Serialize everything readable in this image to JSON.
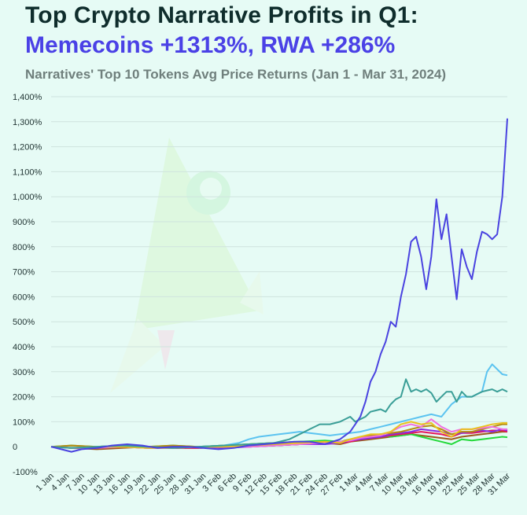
{
  "header": {
    "title": "Top Crypto Narrative Profits in Q1:",
    "subtitle": "Memecoins +1313%, RWA +286%",
    "caption": "Narratives' Top 10 Tokens Avg Price Returns (Jan 1 - Mar 31, 2024)"
  },
  "chart_data": {
    "type": "line",
    "title": "Top Crypto Narrative Profits in Q1: Memecoins +1313%, RWA +286%",
    "subtitle": "Narratives' Top 10 Tokens Avg Price Returns (Jan 1 - Mar 31, 2024)",
    "xlabel": "",
    "ylabel": "",
    "ylim": [
      -100,
      1400
    ],
    "grid": true,
    "legend": "none",
    "y_ticks": [
      "-100%",
      "0",
      "100%",
      "200%",
      "300%",
      "400%",
      "500%",
      "600%",
      "700%",
      "800%",
      "900%",
      "1,000%",
      "1,100%",
      "1,200%",
      "1,300%",
      "1,400%"
    ],
    "y_tick_values": [
      -100,
      0,
      100,
      200,
      300,
      400,
      500,
      600,
      700,
      800,
      900,
      1000,
      1100,
      1200,
      1300,
      1400
    ],
    "x_labels": [
      "1 Jan",
      "4 Jan",
      "7 Jan",
      "10 Jan",
      "13 Jan",
      "16 Jan",
      "19 Jan",
      "22 Jan",
      "25 Jan",
      "28 Jan",
      "31 Jan",
      "3 Feb",
      "6 Feb",
      "9 Feb",
      "12 Feb",
      "15 Feb",
      "18 Feb",
      "21 Feb",
      "24 Feb",
      "27 Feb",
      "1 Mar",
      "4 Mar",
      "7 Mar",
      "10 Mar",
      "13 Mar",
      "16 Mar",
      "19 Mar",
      "22 Mar",
      "25 Mar",
      "28 Mar",
      "31 Mar"
    ],
    "x_days": [
      1,
      4,
      7,
      10,
      13,
      16,
      19,
      22,
      25,
      28,
      31,
      34,
      37,
      40,
      43,
      46,
      49,
      52,
      55,
      58,
      61,
      64,
      67,
      70,
      73,
      76,
      79,
      82,
      85,
      88,
      91
    ],
    "series": [
      {
        "color": "#4a43e0",
        "x": [
          1,
          3,
          5,
          7,
          10,
          13,
          16,
          19,
          22,
          25,
          28,
          31,
          34,
          37,
          40,
          43,
          46,
          49,
          52,
          55,
          58,
          60,
          61,
          62,
          63,
          64,
          65,
          66,
          67,
          68,
          69,
          70,
          71,
          72,
          73,
          74,
          75,
          76,
          77,
          78,
          79,
          80,
          81,
          82,
          83,
          84,
          85,
          86,
          87,
          88,
          89,
          90,
          91
        ],
        "y": [
          0,
          -10,
          -20,
          -10,
          -5,
          5,
          10,
          5,
          -5,
          0,
          0,
          -5,
          -10,
          -5,
          5,
          10,
          15,
          20,
          20,
          10,
          30,
          60,
          90,
          120,
          180,
          260,
          300,
          370,
          420,
          500,
          480,
          600,
          690,
          820,
          840,
          760,
          630,
          760,
          990,
          830,
          930,
          760,
          590,
          790,
          720,
          670,
          780,
          860,
          850,
          830,
          850,
          1000,
          1313
        ]
      },
      {
        "color": "#3a9e97",
        "x": [
          1,
          5,
          10,
          15,
          20,
          25,
          30,
          35,
          40,
          45,
          48,
          50,
          52,
          54,
          56,
          58,
          60,
          61,
          62,
          63,
          64,
          65,
          66,
          67,
          68,
          69,
          70,
          71,
          72,
          73,
          74,
          75,
          76,
          77,
          78,
          79,
          80,
          81,
          82,
          83,
          84,
          85,
          86,
          87,
          88,
          89,
          90,
          91
        ],
        "y": [
          0,
          -5,
          0,
          5,
          0,
          -5,
          0,
          5,
          10,
          15,
          30,
          50,
          70,
          90,
          90,
          100,
          120,
          100,
          110,
          120,
          140,
          145,
          150,
          140,
          170,
          190,
          200,
          270,
          220,
          230,
          220,
          230,
          215,
          180,
          200,
          220,
          220,
          180,
          220,
          200,
          200,
          210,
          220,
          225,
          230,
          220,
          230,
          220
        ]
      },
      {
        "color": "#5bc3f0",
        "x": [
          1,
          5,
          10,
          15,
          20,
          25,
          30,
          35,
          38,
          40,
          42,
          44,
          46,
          48,
          50,
          52,
          54,
          56,
          58,
          60,
          62,
          64,
          66,
          68,
          70,
          72,
          74,
          76,
          78,
          80,
          82,
          84,
          86,
          87,
          88,
          89,
          90,
          91
        ],
        "y": [
          0,
          -5,
          0,
          5,
          0,
          -5,
          0,
          5,
          15,
          30,
          40,
          45,
          50,
          55,
          60,
          55,
          50,
          45,
          50,
          55,
          60,
          70,
          80,
          90,
          100,
          110,
          120,
          130,
          120,
          170,
          200,
          200,
          220,
          300,
          330,
          310,
          290,
          286
        ]
      },
      {
        "color": "#e9c11f",
        "x": [
          1,
          5,
          10,
          15,
          20,
          25,
          30,
          35,
          40,
          45,
          50,
          55,
          58,
          60,
          62,
          64,
          66,
          68,
          70,
          72,
          74,
          76,
          78,
          80,
          82,
          84,
          86,
          88,
          90,
          91
        ],
        "y": [
          0,
          -5,
          0,
          0,
          -5,
          -5,
          0,
          0,
          5,
          10,
          15,
          20,
          15,
          30,
          40,
          50,
          50,
          60,
          90,
          100,
          90,
          95,
          60,
          40,
          70,
          70,
          80,
          90,
          95,
          95
        ]
      },
      {
        "color": "#f070e0",
        "x": [
          1,
          5,
          10,
          15,
          20,
          25,
          30,
          35,
          40,
          45,
          50,
          55,
          58,
          60,
          62,
          64,
          66,
          68,
          70,
          72,
          74,
          76,
          78,
          80,
          82,
          84,
          86,
          88,
          90,
          91
        ],
        "y": [
          0,
          -5,
          -5,
          0,
          -5,
          -5,
          0,
          0,
          0,
          5,
          10,
          15,
          20,
          25,
          35,
          40,
          45,
          60,
          80,
          90,
          80,
          110,
          80,
          60,
          70,
          70,
          75,
          80,
          70,
          70
        ]
      },
      {
        "color": "#b68a13",
        "x": [
          1,
          5,
          10,
          15,
          20,
          25,
          30,
          35,
          40,
          45,
          50,
          55,
          58,
          60,
          62,
          64,
          66,
          68,
          70,
          72,
          74,
          76,
          78,
          80,
          82,
          84,
          86,
          88,
          90,
          91
        ],
        "y": [
          0,
          5,
          0,
          5,
          0,
          5,
          0,
          5,
          10,
          15,
          20,
          15,
          20,
          30,
          40,
          45,
          50,
          55,
          60,
          70,
          80,
          85,
          70,
          50,
          60,
          60,
          70,
          80,
          90,
          90
        ]
      },
      {
        "color": "#8a2be2",
        "x": [
          1,
          5,
          10,
          15,
          20,
          25,
          30,
          35,
          40,
          45,
          50,
          55,
          58,
          60,
          62,
          64,
          66,
          68,
          70,
          72,
          74,
          76,
          78,
          80,
          82,
          84,
          86,
          88,
          90,
          91
        ],
        "y": [
          0,
          -5,
          0,
          0,
          -5,
          0,
          0,
          -5,
          0,
          5,
          10,
          10,
          15,
          25,
          30,
          35,
          40,
          50,
          55,
          60,
          70,
          65,
          60,
          50,
          55,
          60,
          65,
          60,
          70,
          65
        ]
      },
      {
        "color": "#e6175b",
        "x": [
          1,
          5,
          10,
          15,
          20,
          25,
          30,
          35,
          40,
          45,
          50,
          55,
          58,
          60,
          62,
          64,
          66,
          68,
          70,
          72,
          74,
          76,
          78,
          80,
          82,
          84,
          86,
          88,
          90,
          91
        ],
        "y": [
          0,
          -5,
          -5,
          0,
          -5,
          -5,
          -5,
          0,
          0,
          5,
          10,
          15,
          15,
          20,
          30,
          35,
          40,
          45,
          50,
          55,
          60,
          55,
          50,
          40,
          55,
          55,
          60,
          65,
          65,
          60
        ]
      },
      {
        "color": "#23d93a",
        "x": [
          1,
          5,
          10,
          15,
          20,
          25,
          30,
          35,
          40,
          45,
          50,
          55,
          58,
          60,
          62,
          64,
          66,
          68,
          70,
          72,
          74,
          76,
          78,
          80,
          82,
          84,
          86,
          88,
          90,
          91
        ],
        "y": [
          0,
          5,
          0,
          5,
          0,
          5,
          0,
          5,
          10,
          15,
          20,
          25,
          20,
          30,
          35,
          40,
          45,
          40,
          45,
          50,
          40,
          30,
          20,
          10,
          30,
          25,
          30,
          35,
          40,
          38
        ]
      },
      {
        "color": "#9b5a1a",
        "x": [
          1,
          5,
          10,
          15,
          20,
          25,
          30,
          35,
          40,
          45,
          50,
          55,
          58,
          60,
          62,
          64,
          66,
          68,
          70,
          72,
          74,
          76,
          78,
          80,
          82,
          84,
          86,
          88,
          90,
          91
        ],
        "y": [
          0,
          -5,
          -10,
          -5,
          0,
          -5,
          -5,
          0,
          5,
          5,
          10,
          15,
          10,
          20,
          25,
          30,
          35,
          40,
          45,
          50,
          45,
          40,
          35,
          30,
          40,
          45,
          50,
          55,
          60,
          60
        ]
      }
    ]
  }
}
